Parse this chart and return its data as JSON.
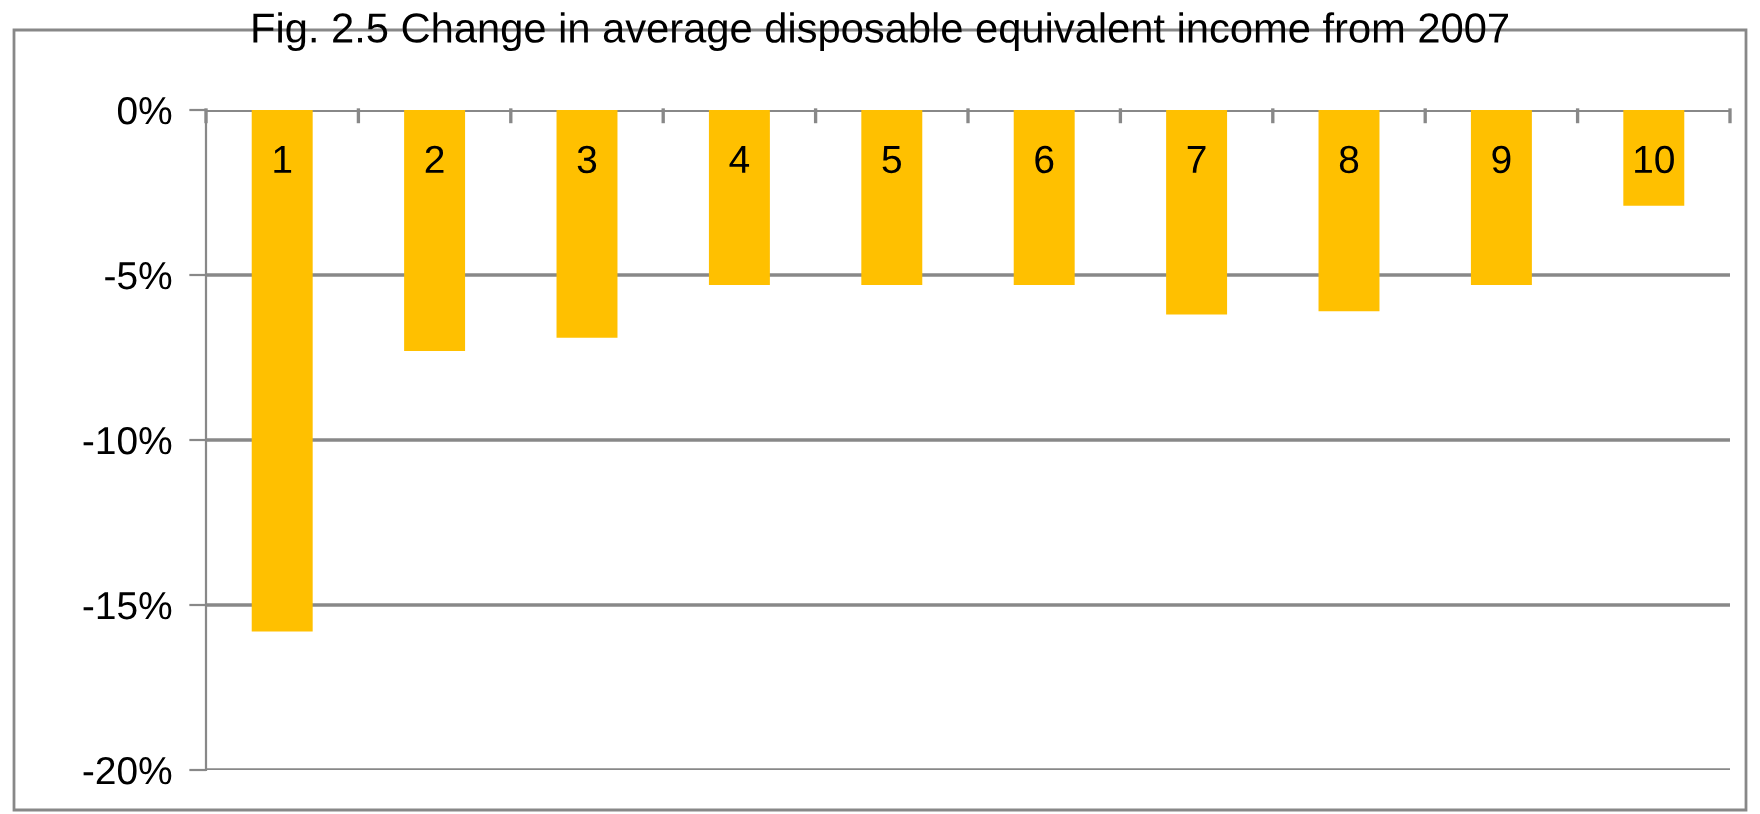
{
  "chart_data": {
    "type": "bar",
    "title": "Fig. 2.5 Change in average disposable equivalent income from 2007",
    "categories": [
      "1",
      "2",
      "3",
      "4",
      "5",
      "6",
      "7",
      "8",
      "9",
      "10"
    ],
    "values": [
      -15.8,
      -7.3,
      -6.9,
      -5.3,
      -5.3,
      -5.3,
      -6.2,
      -6.1,
      -5.3,
      -2.9
    ],
    "color": "#ffc000",
    "ylim": [
      -20,
      0
    ],
    "yticks": [
      {
        "value": -20,
        "label": "-20%"
      },
      {
        "value": -15,
        "label": "-15%"
      },
      {
        "value": -10,
        "label": "-10%"
      },
      {
        "value": -5,
        "label": "-5%"
      },
      {
        "value": 0,
        "label": "0%"
      }
    ],
    "grid": "y"
  }
}
